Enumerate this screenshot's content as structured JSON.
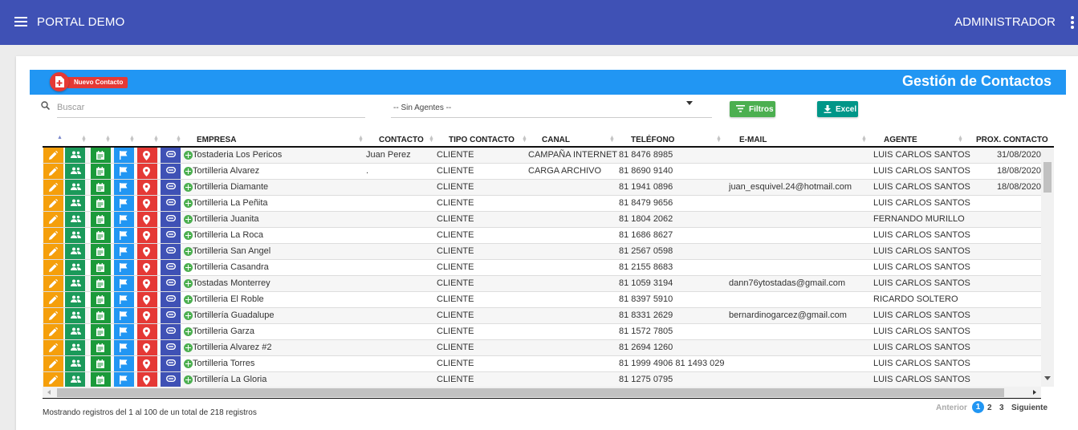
{
  "appbar": {
    "title": "PORTAL DEMO",
    "user": "ADMINISTRADOR"
  },
  "page": {
    "title": "Gestión de Contactos",
    "new_contact": "Nuevo Contacto"
  },
  "filters": {
    "search_placeholder": "Buscar",
    "agent_select": "-- Sin Agentes --",
    "filter_button": "Filtros",
    "excel_button": "Excel"
  },
  "table": {
    "columns": [
      "EMPRESA",
      "CONTACTO",
      "TIPO CONTACTO",
      "CANAL",
      "TELÉFONO",
      "E-MAIL",
      "AGENTE",
      "PROX. CONTACTO"
    ],
    "rows": [
      {
        "empresa": "Tostaderia Los Pericos",
        "contacto": "Juan Perez",
        "tipo": "CLIENTE",
        "canal": "CAMPAÑA INTERNET",
        "telefono": "81 8476 8985",
        "email": "",
        "agente": "LUIS CARLOS SANTOS",
        "prox": "31/08/2020"
      },
      {
        "empresa": "Tortilleria Alvarez",
        "contacto": ".",
        "tipo": "CLIENTE",
        "canal": "CARGA ARCHIVO",
        "telefono": "81 8690 9140",
        "email": "",
        "agente": "LUIS CARLOS SANTOS",
        "prox": "18/08/2020"
      },
      {
        "empresa": "Tortilleria Diamante",
        "contacto": "",
        "tipo": "CLIENTE",
        "canal": "",
        "telefono": "81 1941 0896",
        "email": "juan_esquivel.24@hotmail.com",
        "agente": "LUIS CARLOS SANTOS",
        "prox": "18/08/2020"
      },
      {
        "empresa": "Tortilleria La Peñita",
        "contacto": "",
        "tipo": "CLIENTE",
        "canal": "",
        "telefono": "81 8479 9656",
        "email": "",
        "agente": "LUIS CARLOS SANTOS",
        "prox": ""
      },
      {
        "empresa": "Tortilleria Juanita",
        "contacto": "",
        "tipo": "CLIENTE",
        "canal": "",
        "telefono": "81 1804 2062",
        "email": "",
        "agente": "FERNANDO MURILLO",
        "prox": ""
      },
      {
        "empresa": "Tortilleria La Roca",
        "contacto": "",
        "tipo": "CLIENTE",
        "canal": "",
        "telefono": "81 1686 8627",
        "email": "",
        "agente": "LUIS CARLOS SANTOS",
        "prox": ""
      },
      {
        "empresa": "Tortilleria San Angel",
        "contacto": "",
        "tipo": "CLIENTE",
        "canal": "",
        "telefono": "81 2567 0598",
        "email": "",
        "agente": "LUIS CARLOS SANTOS",
        "prox": ""
      },
      {
        "empresa": "Tortilleria Casandra",
        "contacto": "",
        "tipo": "CLIENTE",
        "canal": "",
        "telefono": "81 2155 8683",
        "email": "",
        "agente": "LUIS CARLOS SANTOS",
        "prox": ""
      },
      {
        "empresa": "Tostadas Monterrey",
        "contacto": "",
        "tipo": "CLIENTE",
        "canal": "",
        "telefono": "81 1059 3194",
        "email": "dann76ytostadas@gmail.com",
        "agente": "LUIS CARLOS SANTOS",
        "prox": ""
      },
      {
        "empresa": "Tortilleria El Roble",
        "contacto": "",
        "tipo": "CLIENTE",
        "canal": "",
        "telefono": "81 8397 5910",
        "email": "",
        "agente": "RICARDO SOLTERO",
        "prox": ""
      },
      {
        "empresa": "Tortillería Guadalupe",
        "contacto": "",
        "tipo": "CLIENTE",
        "canal": "",
        "telefono": "81 8331 2629",
        "email": "bernardinogarcez@gmail.com",
        "agente": "LUIS CARLOS SANTOS",
        "prox": ""
      },
      {
        "empresa": "Tortilleria Garza",
        "contacto": "",
        "tipo": "CLIENTE",
        "canal": "",
        "telefono": "81 1572 7805",
        "email": "",
        "agente": "LUIS CARLOS SANTOS",
        "prox": ""
      },
      {
        "empresa": "Tortilleria Alvarez #2",
        "contacto": "",
        "tipo": "CLIENTE",
        "canal": "",
        "telefono": "81 2694 1260",
        "email": "",
        "agente": "LUIS CARLOS SANTOS",
        "prox": ""
      },
      {
        "empresa": "Tortilleria Torres",
        "contacto": "",
        "tipo": "CLIENTE",
        "canal": "",
        "telefono": "81 1999 4906 81 1493 029",
        "email": "",
        "agente": "LUIS CARLOS SANTOS",
        "prox": ""
      },
      {
        "empresa": "Tortillería La Gloria",
        "contacto": "",
        "tipo": "CLIENTE",
        "canal": "",
        "telefono": "81 1275 0795",
        "email": "",
        "agente": "LUIS CARLOS SANTOS",
        "prox": ""
      }
    ]
  },
  "footer": {
    "info": "Mostrando registros del 1 al 100 de un total de 218 registros",
    "prev": "Anterior",
    "pages": [
      "1",
      "2",
      "3"
    ],
    "next": "Siguiente"
  },
  "colors": {
    "appbar": "#3f51b5",
    "header_band": "#2196f3",
    "edit": "#f59f0b",
    "assign": "#1b9a5a",
    "notes": "#1b9a3a",
    "flag": "#2196f3",
    "location": "#e53935",
    "link": "#3f51b5"
  },
  "row_action_icons": [
    "pencil-icon",
    "people-icon",
    "calendar-icon",
    "flag-icon",
    "map-pin-icon",
    "link-icon"
  ]
}
